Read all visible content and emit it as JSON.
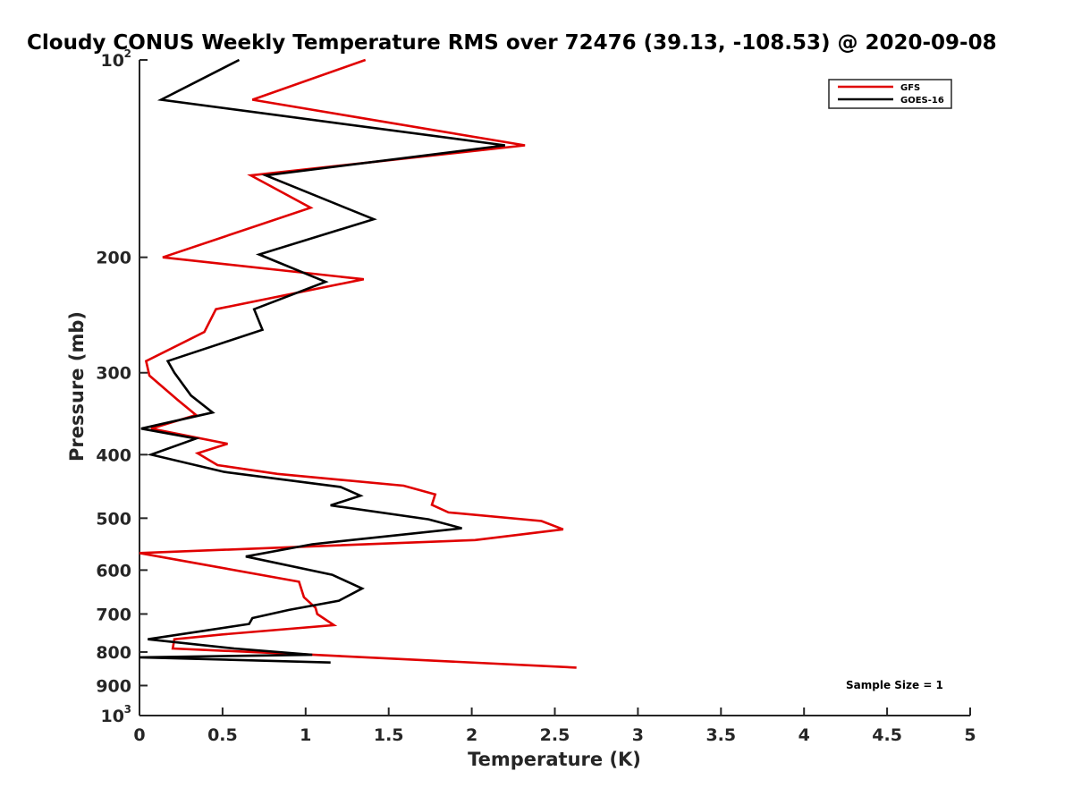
{
  "chart_data": {
    "type": "line",
    "title": "Cloudy CONUS Weekly Temperature RMS over 72476 (39.13, -108.53) @ 2020-09-08",
    "xlabel": "Temperature (K)",
    "ylabel": "Pressure (mb)",
    "xlim": [
      0,
      5
    ],
    "ylim": [
      100,
      1000
    ],
    "y_scale": "log",
    "y_reversed": true,
    "x_ticks": [
      0,
      0.5,
      1,
      1.5,
      2,
      2.5,
      3,
      3.5,
      4,
      4.5,
      5
    ],
    "x_tick_labels": [
      "0",
      "0.5",
      "1",
      "1.5",
      "2",
      "2.5",
      "3",
      "3.5",
      "4",
      "4.5",
      "5"
    ],
    "y_ticks": [
      {
        "value": 100,
        "base": "10",
        "exp": "2"
      },
      {
        "value": 200,
        "label": "200"
      },
      {
        "value": 300,
        "label": "300"
      },
      {
        "value": 400,
        "label": "400"
      },
      {
        "value": 500,
        "label": "500"
      },
      {
        "value": 600,
        "label": "600"
      },
      {
        "value": 700,
        "label": "700"
      },
      {
        "value": 800,
        "label": "800"
      },
      {
        "value": 900,
        "label": "900"
      },
      {
        "value": 1000,
        "base": "10",
        "exp": "3"
      }
    ],
    "grid": false,
    "legend_position": "top-right",
    "annotation": "Sample Size = 1",
    "series": [
      {
        "name": "GFS",
        "color": "#e00000",
        "points": [
          [
            1.36,
            100
          ],
          [
            0.68,
            115
          ],
          [
            2.32,
            135
          ],
          [
            0.67,
            150
          ],
          [
            1.03,
            168
          ],
          [
            0.14,
            200
          ],
          [
            1.35,
            216
          ],
          [
            0.46,
            240
          ],
          [
            0.39,
            260
          ],
          [
            0.04,
            288
          ],
          [
            0.06,
            303
          ],
          [
            0.23,
            330
          ],
          [
            0.34,
            348
          ],
          [
            0.07,
            365
          ],
          [
            0.53,
            385
          ],
          [
            0.35,
            398
          ],
          [
            0.47,
            415
          ],
          [
            0.83,
            428
          ],
          [
            1.59,
            446
          ],
          [
            1.78,
            460
          ],
          [
            1.76,
            477
          ],
          [
            1.86,
            490
          ],
          [
            2.42,
            505
          ],
          [
            2.55,
            520
          ],
          [
            2.02,
            540
          ],
          [
            0.0,
            565
          ],
          [
            0.96,
            625
          ],
          [
            0.99,
            660
          ],
          [
            1.06,
            685
          ],
          [
            1.07,
            700
          ],
          [
            1.17,
            728
          ],
          [
            0.5,
            752
          ],
          [
            0.21,
            765
          ],
          [
            0.2,
            790
          ],
          [
            1.05,
            808
          ],
          [
            2.63,
            845
          ]
        ]
      },
      {
        "name": "GOES-16",
        "color": "#000000",
        "points": [
          [
            0.6,
            100
          ],
          [
            0.13,
            115
          ],
          [
            2.2,
            135
          ],
          [
            0.76,
            150
          ],
          [
            1.41,
            175
          ],
          [
            0.72,
            198
          ],
          [
            1.12,
            218
          ],
          [
            0.69,
            240
          ],
          [
            0.74,
            258
          ],
          [
            0.17,
            288
          ],
          [
            0.21,
            300
          ],
          [
            0.31,
            325
          ],
          [
            0.44,
            345
          ],
          [
            0.01,
            365
          ],
          [
            0.34,
            378
          ],
          [
            0.07,
            400
          ],
          [
            0.51,
            425
          ],
          [
            1.21,
            448
          ],
          [
            1.33,
            462
          ],
          [
            1.15,
            478
          ],
          [
            1.74,
            502
          ],
          [
            1.94,
            518
          ],
          [
            1.42,
            535
          ],
          [
            1.04,
            548
          ],
          [
            0.64,
            572
          ],
          [
            1.16,
            610
          ],
          [
            1.34,
            640
          ],
          [
            1.2,
            668
          ],
          [
            0.9,
            690
          ],
          [
            0.68,
            710
          ],
          [
            0.66,
            725
          ],
          [
            0.05,
            765
          ],
          [
            0.57,
            790
          ],
          [
            1.04,
            808
          ],
          [
            0.0,
            815
          ],
          [
            1.15,
            830
          ]
        ]
      }
    ]
  }
}
